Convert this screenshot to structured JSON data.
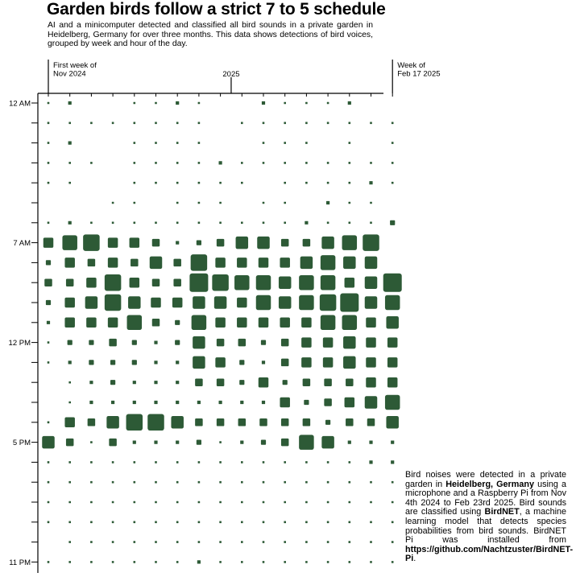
{
  "title": "Garden birds follow a strict 7 to 5 schedule",
  "subtitle": "AI and a minicomputer detected and classified all bird sounds in a private garden in Heidelberg, Germany for over three months. This data shows detections of bird voices, grouped by week and hour of the day.",
  "note": {
    "p1": "Bird noises were detected in a private garden in ",
    "place": "Heidelberg, Germany",
    "p2": " using a microphone and a Raspberry Pi from Nov 4th 2024 to Feb 23rd 2025. Bird sounds are classified using ",
    "model": "BirdNET",
    "p3": ", a machine learning model that detects species probabilities from bird sounds. BirdNET Pi was installed from ",
    "url": "https://github.com/Nachtzuster/BirdNET-Pi",
    "p4": "."
  },
  "colors": {
    "mark": "#2d5a36",
    "axis": "#000000"
  },
  "chart_data": {
    "type": "heatmap",
    "encoding": "square size = number of detections",
    "x_annotations": [
      {
        "week": 0,
        "lines": [
          "First week of",
          "Nov 2024"
        ]
      },
      {
        "week": 8.5,
        "lines": [
          "2025"
        ]
      },
      {
        "week": 16,
        "lines": [
          "Week of",
          "Feb 17 2025"
        ]
      }
    ],
    "x_count": 17,
    "hours": [
      0,
      1,
      2,
      3,
      4,
      5,
      6,
      7,
      8,
      9,
      10,
      11,
      12,
      13,
      14,
      15,
      16,
      17,
      18,
      19,
      20,
      21,
      22,
      23
    ],
    "y_tick_labels": [
      {
        "hour": 0,
        "label": "12 AM"
      },
      {
        "hour": 7,
        "label": "7 AM"
      },
      {
        "hour": 12,
        "label": "12 PM"
      },
      {
        "hour": 17,
        "label": "5 PM"
      },
      {
        "hour": 23,
        "label": "11 PM"
      }
    ],
    "matrix_weeks_by_hour": [
      [
        1,
        2,
        0,
        0,
        1,
        1,
        2,
        1,
        0,
        0,
        2,
        1,
        1,
        1,
        2,
        0,
        0
      ],
      [
        1,
        1,
        1,
        1,
        1,
        1,
        1,
        1,
        0,
        1,
        1,
        1,
        1,
        1,
        1,
        1,
        1
      ],
      [
        1,
        2,
        0,
        0,
        1,
        1,
        1,
        1,
        0,
        0,
        1,
        1,
        1,
        0,
        1,
        0,
        1
      ],
      [
        1,
        1,
        1,
        0,
        1,
        1,
        1,
        1,
        2,
        1,
        1,
        1,
        1,
        1,
        1,
        1,
        1
      ],
      [
        1,
        1,
        0,
        0,
        1,
        1,
        1,
        1,
        1,
        1,
        0,
        1,
        1,
        1,
        1,
        2,
        1
      ],
      [
        0,
        0,
        0,
        1,
        1,
        0,
        1,
        1,
        1,
        0,
        1,
        1,
        0,
        2,
        1,
        1,
        0
      ],
      [
        1,
        2,
        1,
        1,
        1,
        1,
        1,
        1,
        1,
        1,
        1,
        1,
        2,
        1,
        1,
        1,
        3
      ],
      [
        5,
        7,
        8,
        5,
        5,
        4,
        2,
        3,
        4,
        6,
        6,
        4,
        4,
        6,
        7,
        8,
        0
      ],
      [
        3,
        5,
        4,
        5,
        4,
        6,
        4,
        8,
        5,
        5,
        5,
        5,
        6,
        7,
        6,
        6,
        0
      ],
      [
        4,
        4,
        5,
        8,
        5,
        4,
        4,
        9,
        8,
        7,
        7,
        6,
        7,
        7,
        5,
        6,
        9
      ],
      [
        3,
        5,
        6,
        8,
        6,
        5,
        5,
        6,
        6,
        5,
        7,
        6,
        7,
        8,
        9,
        6,
        7
      ],
      [
        2,
        5,
        5,
        5,
        7,
        4,
        3,
        7,
        5,
        5,
        5,
        5,
        5,
        7,
        7,
        5,
        6
      ],
      [
        1,
        3,
        3,
        4,
        3,
        2,
        3,
        6,
        4,
        4,
        3,
        4,
        5,
        5,
        6,
        5,
        5
      ],
      [
        1,
        2,
        3,
        3,
        3,
        2,
        2,
        6,
        5,
        3,
        2,
        4,
        5,
        5,
        6,
        5,
        5
      ],
      [
        0,
        1,
        2,
        3,
        2,
        2,
        2,
        4,
        4,
        3,
        5,
        3,
        4,
        4,
        4,
        5,
        5
      ],
      [
        0,
        1,
        2,
        2,
        2,
        2,
        2,
        2,
        2,
        2,
        2,
        5,
        3,
        4,
        5,
        6,
        7
      ],
      [
        1,
        5,
        4,
        6,
        8,
        8,
        6,
        4,
        4,
        4,
        4,
        4,
        4,
        3,
        4,
        4,
        6
      ],
      [
        6,
        4,
        1,
        4,
        2,
        2,
        2,
        3,
        1,
        2,
        3,
        4,
        7,
        6,
        2,
        2,
        2
      ],
      [
        1,
        1,
        1,
        1,
        1,
        1,
        1,
        1,
        1,
        1,
        1,
        1,
        1,
        1,
        1,
        2,
        2
      ],
      [
        1,
        1,
        1,
        1,
        1,
        1,
        1,
        1,
        1,
        1,
        1,
        1,
        1,
        1,
        1,
        1,
        1
      ],
      [
        1,
        1,
        1,
        1,
        1,
        1,
        1,
        1,
        1,
        1,
        1,
        1,
        1,
        1,
        1,
        1,
        1
      ],
      [
        1,
        1,
        1,
        1,
        1,
        1,
        1,
        1,
        1,
        1,
        1,
        1,
        1,
        1,
        1,
        1,
        1
      ],
      [
        0,
        1,
        1,
        1,
        1,
        1,
        1,
        1,
        1,
        1,
        1,
        1,
        1,
        1,
        1,
        1,
        1
      ],
      [
        1,
        1,
        1,
        1,
        1,
        1,
        1,
        2,
        1,
        1,
        1,
        1,
        1,
        1,
        1,
        1,
        1
      ]
    ]
  }
}
